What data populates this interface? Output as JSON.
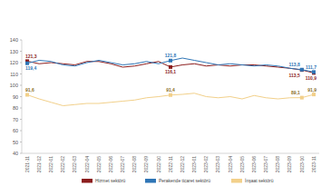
{
  "chart_data": {
    "type": "line",
    "categories": [
      "2021-11",
      "2021-12",
      "2022-01",
      "2022-02",
      "2022-03",
      "2022-04",
      "2022-05",
      "2022-06",
      "2022-07",
      "2022-08",
      "2022-09",
      "2022-10",
      "2022-11",
      "2022-12",
      "2023-01",
      "2023-02",
      "2023-03",
      "2023-04",
      "2023-05",
      "2023-06",
      "2023-07",
      "2023-08",
      "2023-09",
      "2023-10",
      "2023-11"
    ],
    "series": [
      {
        "name": "Hizmet sektörü",
        "color": "#8b1c1c",
        "marker": "square",
        "values": [
          121.3,
          119,
          120,
          119,
          118,
          121,
          121,
          119,
          116,
          117,
          119,
          121,
          116.1,
          118,
          119,
          117,
          118,
          117,
          118,
          118,
          117,
          116,
          115,
          113.5,
          110.9
        ],
        "value_labels": [
          "121,3",
          null,
          null,
          null,
          null,
          null,
          null,
          null,
          null,
          null,
          null,
          null,
          "116,1",
          null,
          null,
          null,
          null,
          null,
          null,
          null,
          null,
          null,
          null,
          "113,5",
          "110,9"
        ]
      },
      {
        "name": "Perakende ticaret sektörü",
        "color": "#2e75b6",
        "marker": "square",
        "values": [
          119.4,
          122,
          121,
          118,
          117,
          120,
          122,
          120,
          118,
          119,
          121,
          119,
          121.8,
          124,
          122,
          120,
          118,
          119,
          118,
          117,
          118,
          117,
          115,
          113.8,
          111.7
        ],
        "value_labels": [
          "119,4",
          null,
          null,
          null,
          null,
          null,
          null,
          null,
          null,
          null,
          null,
          null,
          "121,8",
          null,
          null,
          null,
          null,
          null,
          null,
          null,
          null,
          null,
          null,
          "113,8",
          "111,7"
        ]
      },
      {
        "name": "İnşaat sektörü",
        "color": "#f2d08a",
        "marker": "square",
        "values": [
          91.6,
          88,
          85,
          82,
          83,
          84,
          84,
          85,
          86,
          87,
          89,
          90,
          91.4,
          92,
          93,
          90,
          89,
          90,
          88,
          91,
          89,
          88,
          89,
          89.1,
          91.9
        ],
        "value_labels": [
          "91,6",
          null,
          null,
          null,
          null,
          null,
          null,
          null,
          null,
          null,
          null,
          null,
          "91,4",
          null,
          null,
          null,
          null,
          null,
          null,
          null,
          null,
          null,
          null,
          "89,1",
          "91,9"
        ]
      }
    ],
    "ylim": [
      40,
      140
    ],
    "yticks": [
      40,
      50,
      60,
      70,
      80,
      90,
      100,
      110,
      120,
      130,
      140
    ],
    "grid": false,
    "data_labels": true,
    "legend": "bottom"
  }
}
